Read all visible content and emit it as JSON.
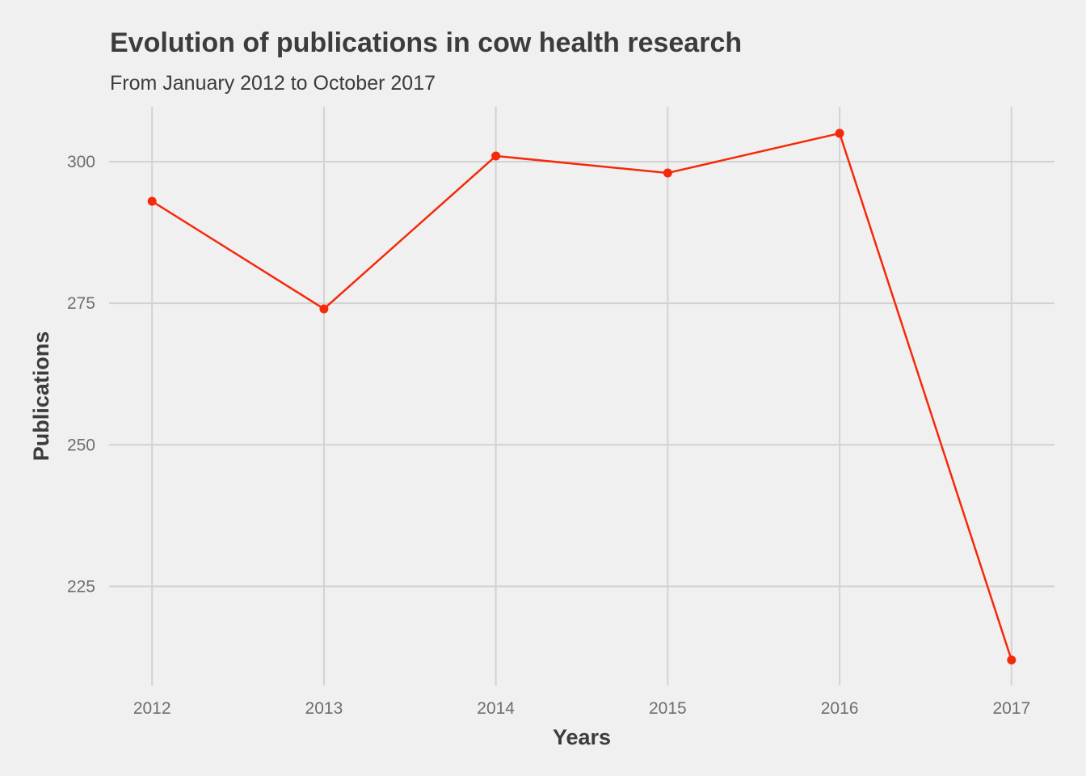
{
  "chart_data": {
    "type": "line",
    "title": "Evolution of publications in cow health research",
    "subtitle": "From January 2012 to October 2017",
    "xlabel": "Years",
    "ylabel": "Publications",
    "x": [
      2012,
      2013,
      2014,
      2015,
      2016,
      2017
    ],
    "series": [
      {
        "values": [
          293,
          274,
          301,
          298,
          305,
          212
        ]
      }
    ],
    "xticks": [
      "2012",
      "2013",
      "2014",
      "2015",
      "2016",
      "2017"
    ],
    "yticks": [
      225,
      250,
      275,
      300
    ],
    "xlim": [
      2011.75,
      2017.25
    ],
    "ylim": [
      207.5,
      309.7
    ],
    "grid": true,
    "legend": "none",
    "line_color": "#f5290a"
  }
}
